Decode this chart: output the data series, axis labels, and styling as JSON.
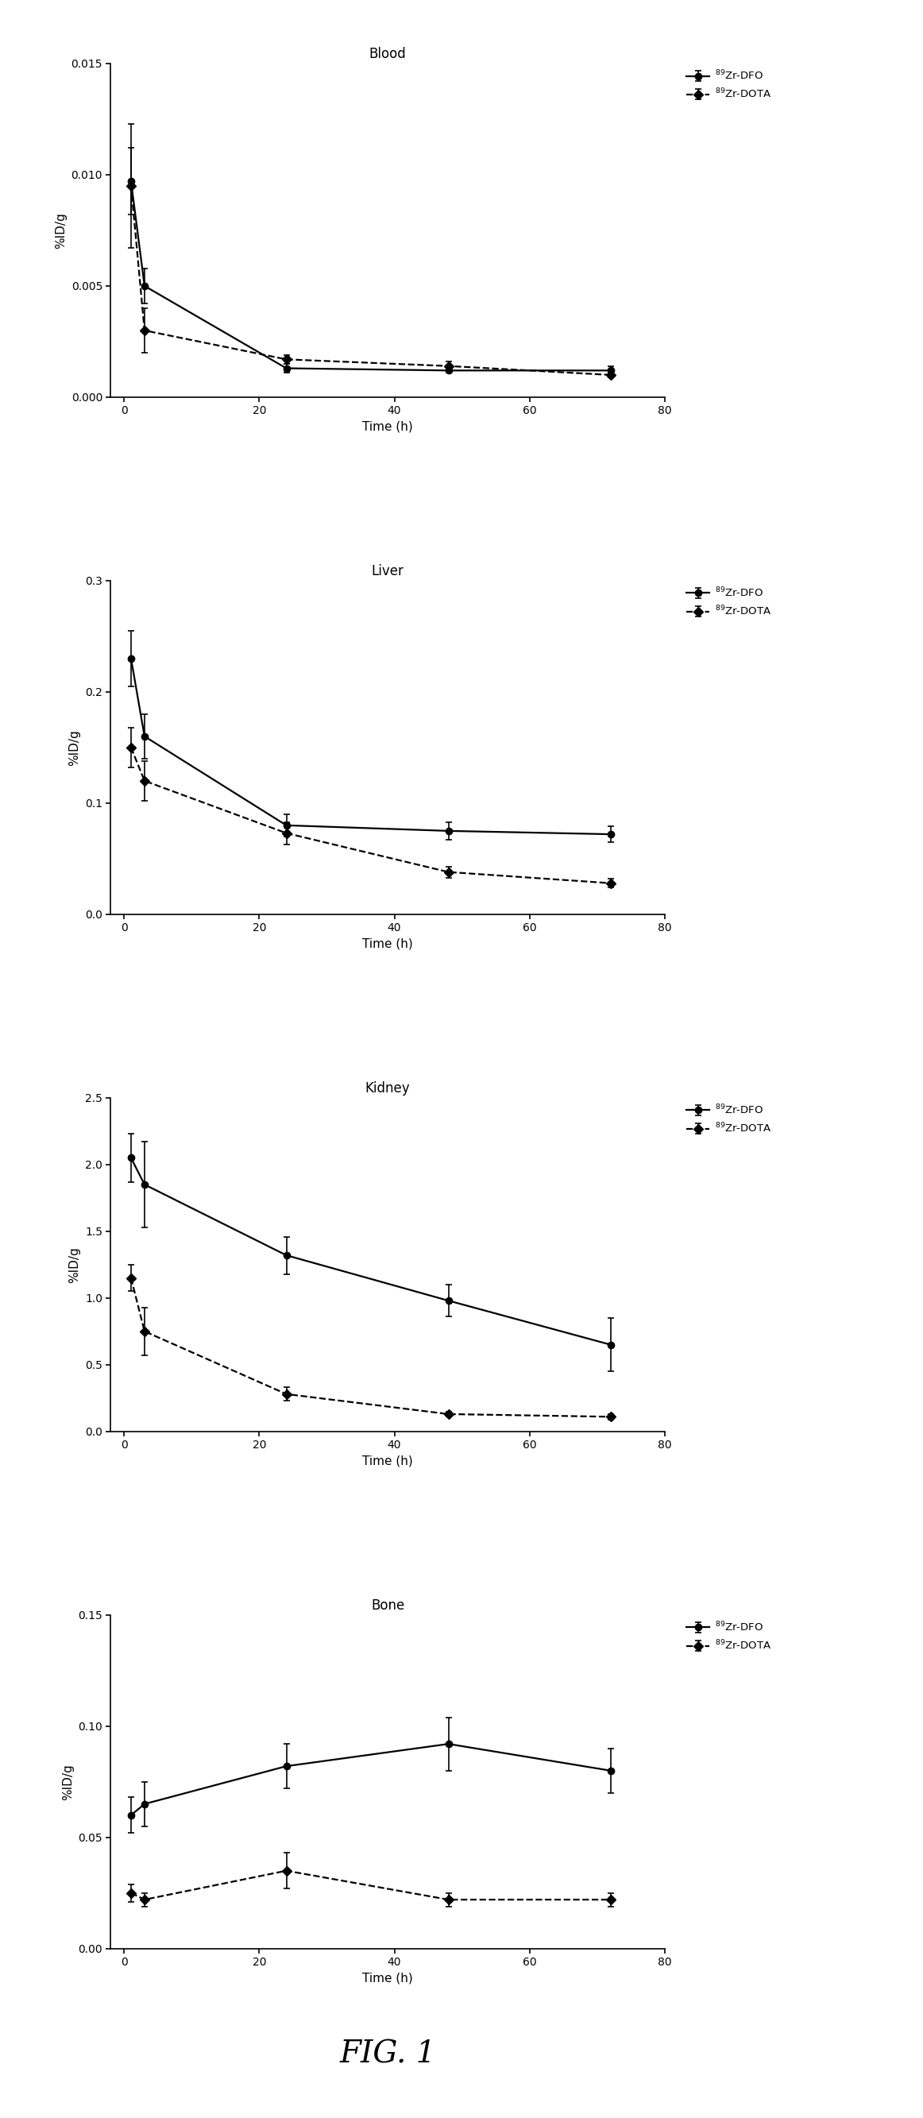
{
  "plots": [
    {
      "title": "Blood",
      "ylabel": "%ID/g",
      "xlabel": "Time (h)",
      "ylim": [
        0,
        0.015
      ],
      "yticks": [
        0.0,
        0.005,
        0.01,
        0.015
      ],
      "ytick_labels": [
        "0.000",
        "0.005",
        "0.010",
        "0.015"
      ],
      "xlim": [
        -2,
        80
      ],
      "xticks": [
        0,
        20,
        40,
        60,
        80
      ],
      "series": [
        {
          "label": "$^{89}$Zr-DFO",
          "x": [
            1,
            3,
            24,
            48,
            72
          ],
          "y": [
            0.0097,
            0.005,
            0.0013,
            0.0012,
            0.0012
          ],
          "yerr": [
            0.0015,
            0.0008,
            0.0002,
            0.0001,
            0.0002
          ],
          "linestyle": "solid",
          "marker": "o",
          "color": "#000000",
          "markersize": 6
        },
        {
          "label": "$^{89}$Zr-DOTA",
          "x": [
            1,
            3,
            24,
            48,
            72
          ],
          "y": [
            0.0095,
            0.003,
            0.0017,
            0.0014,
            0.001
          ],
          "yerr": [
            0.0028,
            0.001,
            0.0002,
            0.0002,
            0.0001
          ],
          "linestyle": "dashed",
          "marker": "D",
          "color": "#000000",
          "markersize": 6
        }
      ]
    },
    {
      "title": "Liver",
      "ylabel": "%ID/g",
      "xlabel": "Time (h)",
      "ylim": [
        0.0,
        0.3
      ],
      "yticks": [
        0.0,
        0.1,
        0.2,
        0.3
      ],
      "ytick_labels": [
        "0.0",
        "0.1",
        "0.2",
        "0.3"
      ],
      "xlim": [
        -2,
        80
      ],
      "xticks": [
        0,
        20,
        40,
        60,
        80
      ],
      "series": [
        {
          "label": "$^{89}$Zr-DFO",
          "x": [
            1,
            3,
            24,
            48,
            72
          ],
          "y": [
            0.23,
            0.16,
            0.08,
            0.075,
            0.072
          ],
          "yerr": [
            0.025,
            0.02,
            0.01,
            0.008,
            0.007
          ],
          "linestyle": "solid",
          "marker": "o",
          "color": "#000000",
          "markersize": 6
        },
        {
          "label": "$^{89}$Zr-DOTA",
          "x": [
            1,
            3,
            24,
            48,
            72
          ],
          "y": [
            0.15,
            0.12,
            0.073,
            0.038,
            0.028
          ],
          "yerr": [
            0.018,
            0.018,
            0.01,
            0.005,
            0.004
          ],
          "linestyle": "dashed",
          "marker": "D",
          "color": "#000000",
          "markersize": 6
        }
      ]
    },
    {
      "title": "Kidney",
      "ylabel": "%ID/g",
      "xlabel": "Time (h)",
      "ylim": [
        0.0,
        2.5
      ],
      "yticks": [
        0.0,
        0.5,
        1.0,
        1.5,
        2.0,
        2.5
      ],
      "ytick_labels": [
        "0.0",
        "0.5",
        "1.0",
        "1.5",
        "2.0",
        "2.5"
      ],
      "xlim": [
        -2,
        80
      ],
      "xticks": [
        0,
        20,
        40,
        60,
        80
      ],
      "series": [
        {
          "label": "$^{89}$Zr-DFO",
          "x": [
            1,
            3,
            24,
            48,
            72
          ],
          "y": [
            2.05,
            1.85,
            1.32,
            0.98,
            0.65
          ],
          "yerr": [
            0.18,
            0.32,
            0.14,
            0.12,
            0.2
          ],
          "linestyle": "solid",
          "marker": "o",
          "color": "#000000",
          "markersize": 6
        },
        {
          "label": "$^{89}$Zr-DOTA",
          "x": [
            1,
            3,
            24,
            48,
            72
          ],
          "y": [
            1.15,
            0.75,
            0.28,
            0.13,
            0.11
          ],
          "yerr": [
            0.1,
            0.18,
            0.05,
            0.02,
            0.02
          ],
          "linestyle": "dashed",
          "marker": "D",
          "color": "#000000",
          "markersize": 6
        }
      ]
    },
    {
      "title": "Bone",
      "ylabel": "%ID/g",
      "xlabel": "Time (h)",
      "ylim": [
        0.0,
        0.15
      ],
      "yticks": [
        0.0,
        0.05,
        0.1,
        0.15
      ],
      "ytick_labels": [
        "0.00",
        "0.05",
        "0.10",
        "0.15"
      ],
      "xlim": [
        -2,
        80
      ],
      "xticks": [
        0,
        20,
        40,
        60,
        80
      ],
      "series": [
        {
          "label": "$^{89}$Zr-DFO",
          "x": [
            1,
            3,
            24,
            48,
            72
          ],
          "y": [
            0.06,
            0.065,
            0.082,
            0.092,
            0.08
          ],
          "yerr": [
            0.008,
            0.01,
            0.01,
            0.012,
            0.01
          ],
          "linestyle": "solid",
          "marker": "o",
          "color": "#000000",
          "markersize": 6
        },
        {
          "label": "$^{89}$Zr-DOTA",
          "x": [
            1,
            3,
            24,
            48,
            72
          ],
          "y": [
            0.025,
            0.022,
            0.035,
            0.022,
            0.022
          ],
          "yerr": [
            0.004,
            0.003,
            0.008,
            0.003,
            0.003
          ],
          "linestyle": "dashed",
          "marker": "D",
          "color": "#000000",
          "markersize": 6
        }
      ]
    }
  ],
  "fig1_label": "FIG. 1",
  "background_color": "#ffffff",
  "legend_fontsize": 9.5,
  "title_fontsize": 12,
  "label_fontsize": 11,
  "tick_fontsize": 10
}
